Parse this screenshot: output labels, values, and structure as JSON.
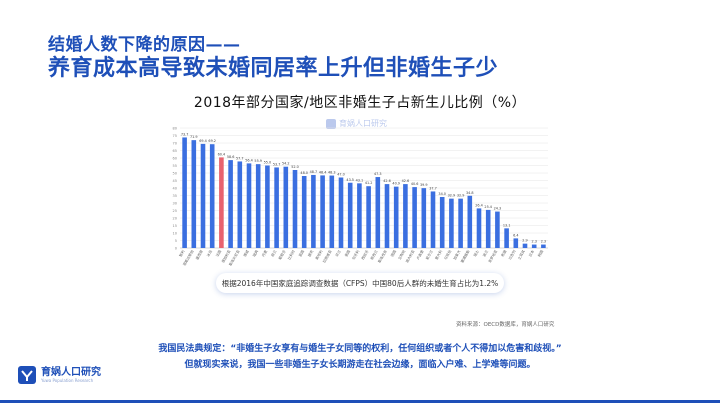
{
  "slide": {
    "title_line1": "结婚人数下降的原因——",
    "title_line2": "养育成本高导致未婚同居率上升但非婚生子少",
    "note": "根据2016年中国家庭追踪调查数据（CFPS）中国80后人群的未婚生育占比为1.2%",
    "source": "资料来源：OECD数据库，育娲人口研究",
    "quote_line1": "我国民法典规定：“非婚生子女享有与婚生子女同等的权利，任何组织或者个人不得加以危害和歧视。”",
    "quote_line2": "但就现实来说，我国一些非婚生子女长期游走在社会边缘，面临入户难、上学难等问题。",
    "watermark": "育娲人口研究",
    "logo_name": "育娲人口研究",
    "logo_sub": "Yuwa Population Research"
  },
  "colors": {
    "bar": "#3b6fe0",
    "highlight": "#e8626e",
    "title": "#1e4fb8"
  },
  "chart_data": {
    "type": "bar",
    "title": "2018年部分国家/地区非婚生子占新生儿比例（%）",
    "ylim": [
      0,
      80
    ],
    "yticks": [
      0,
      5,
      10,
      15,
      20,
      25,
      30,
      35,
      40,
      45,
      50,
      55,
      60,
      65,
      70,
      75,
      80
    ],
    "grid": true,
    "highlight_index": 4,
    "categories": [
      "智利",
      "哥斯达黎加",
      "墨西哥",
      "冰岛",
      "法国",
      "保加利亚",
      "斯洛文尼亚",
      "挪威",
      "瑞典",
      "丹麦",
      "荷兰",
      "葡萄牙",
      "比利时",
      "英国",
      "捷克",
      "奥地利",
      "拉脱维亚",
      "芬兰",
      "美国",
      "匈牙利",
      "西班牙",
      "新西兰",
      "斯洛伐克",
      "德国",
      "立陶宛",
      "澳大利亚",
      "卢森堡",
      "爱尔兰",
      "意大利",
      "马耳他",
      "加拿大",
      "塞浦路斯",
      "瑞士",
      "波兰",
      "克罗地亚",
      "希腊",
      "以色列",
      "土耳其",
      "日本",
      "韩国"
    ],
    "values": [
      73.7,
      71.9,
      69.4,
      69.2,
      60.4,
      58.6,
      57.7,
      56.4,
      55.9,
      55.0,
      53.7,
      54.2,
      52.0,
      48.0,
      48.7,
      48.4,
      48.3,
      47.0,
      43.5,
      43.1,
      41.2,
      47.3,
      42.6,
      40.9,
      42.6,
      40.6,
      39.9,
      37.7,
      34.0,
      32.9,
      32.9,
      34.8,
      26.4,
      25.4,
      24.3,
      13.1,
      6.4,
      2.9,
      2.3,
      2.3
    ],
    "labels": [
      "73.7",
      "71.9",
      "69.4",
      "69.2",
      "60.4",
      "58.6",
      "57.7",
      "56.4",
      "55.9",
      "55.0",
      "53.7",
      "54.2",
      "52.0",
      "48.0",
      "48.7",
      "48.4",
      "48.3",
      "47.0",
      "43.5",
      "43.1",
      "41.2",
      "47.3",
      "42.6",
      "40.9",
      "42.6",
      "40.6",
      "39.9",
      "37.7",
      "34.0",
      "32.9",
      "32.9",
      "34.8",
      "26.4",
      "25.4",
      "24.3",
      "13.1",
      "6.4",
      "2.9",
      "2.3",
      "2.3"
    ]
  }
}
